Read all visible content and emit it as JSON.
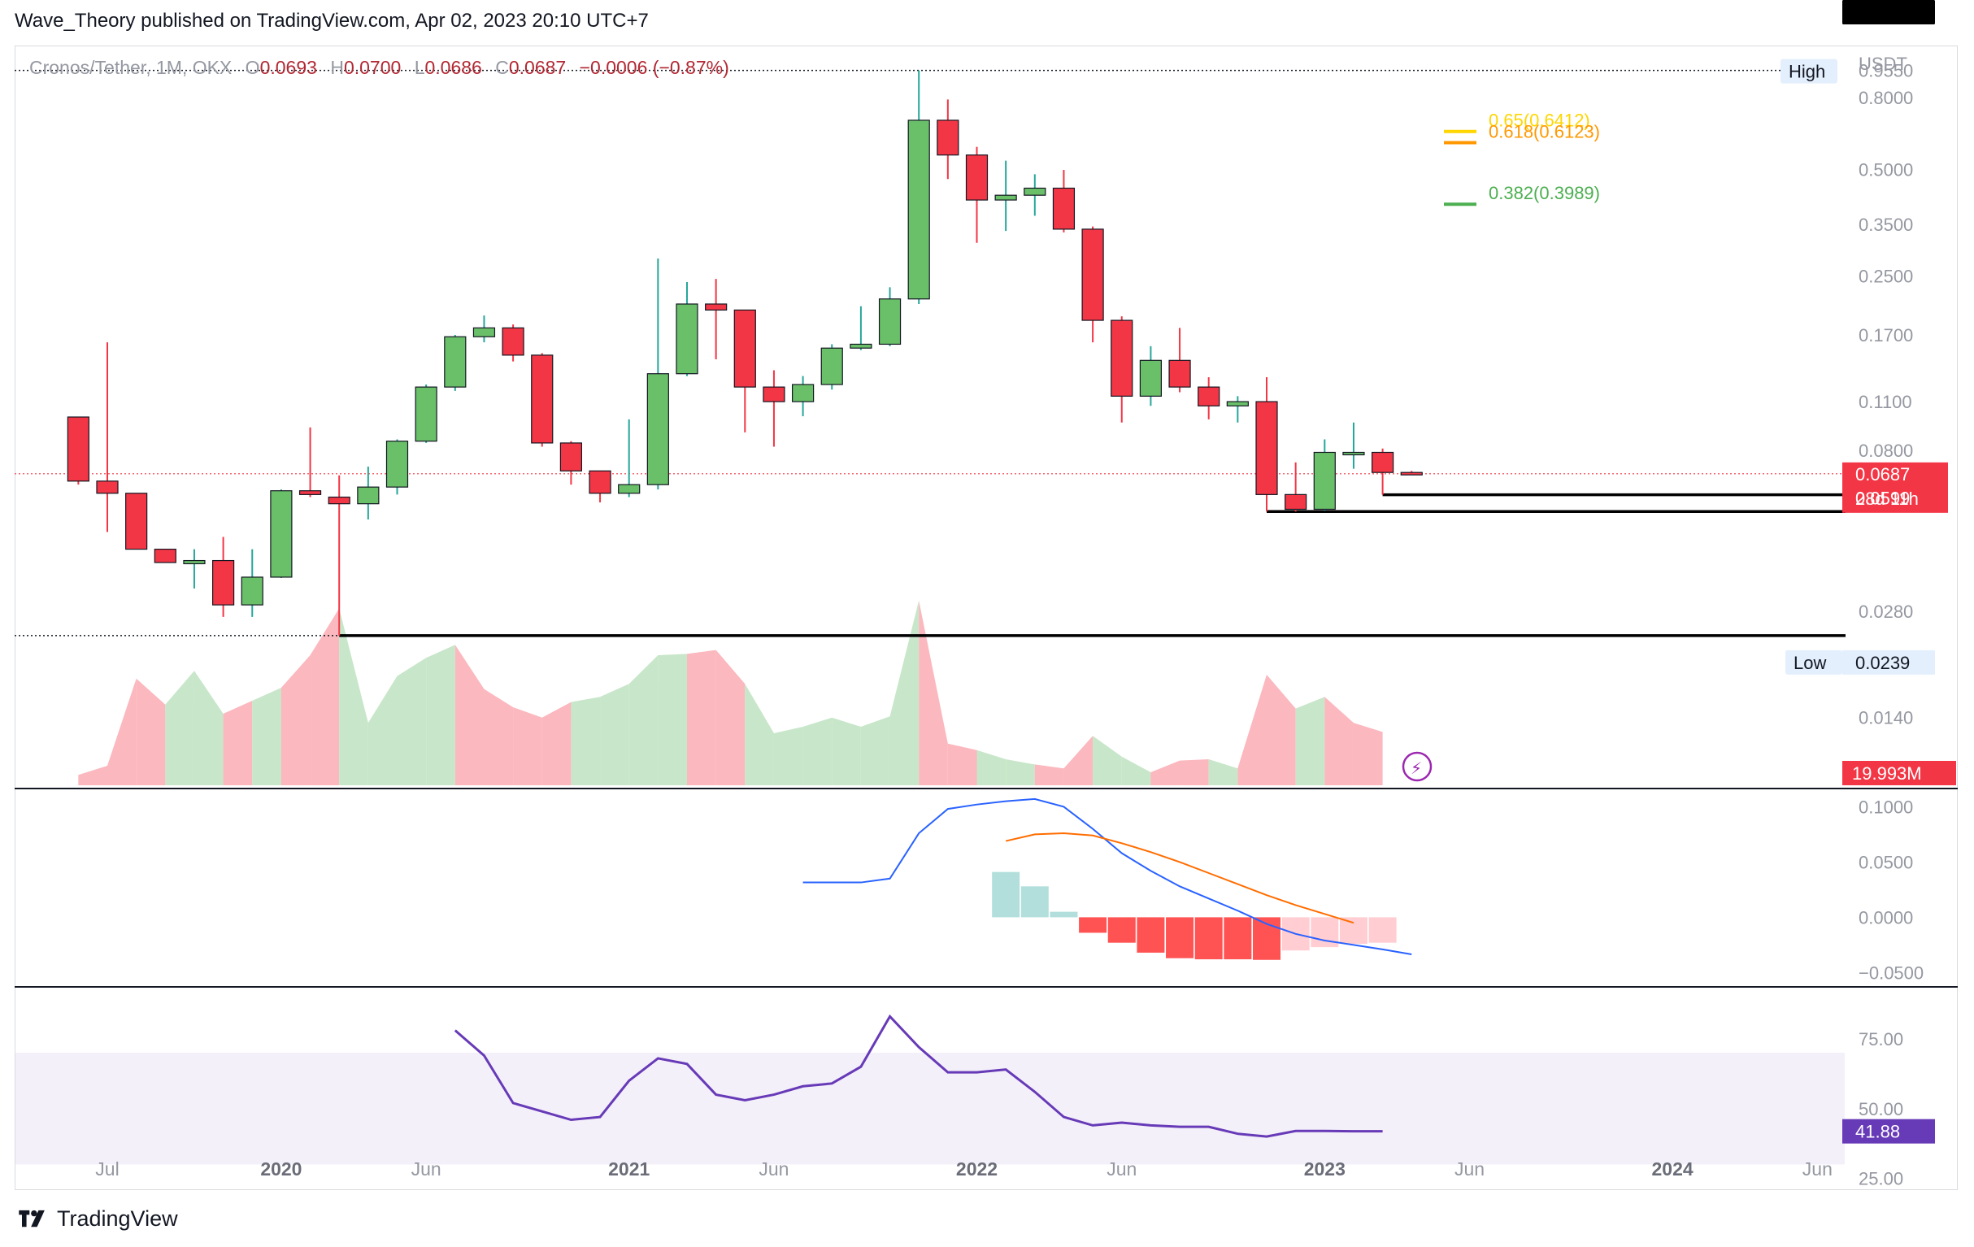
{
  "header": {
    "text": "Wave_Theory published on TradingView.com, Apr 02, 2023 20:10 UTC+7"
  },
  "legend": {
    "symbol": "Cronos/Tether, 1M, OKX",
    "o_label": "O",
    "o_value": "0.0693",
    "h_label": "H",
    "h_value": "0.0700",
    "l_label": "L",
    "l_value": "0.0686",
    "c_label": "C",
    "c_value": "0.0687",
    "change": "−0.0006 (−0.87%)"
  },
  "currency": "USDT",
  "footer": {
    "brand": "TradingView",
    "logo_icon": "tradingview-logo-icon"
  },
  "colors": {
    "up": "#4caf50",
    "up_fill": "#6abf69",
    "down": "#f23645",
    "vol_up": "#c8e6c9",
    "vol_down": "#fbb8be",
    "macd": "#2962ff",
    "signal": "#ff6d00",
    "hist_pos_strong": "#b2dfdb",
    "hist_neg_strong": "#ff5252",
    "hist_neg_weak": "#ffcdd2",
    "rsi": "#673ab7",
    "rsi_band": "#f4f0fa",
    "fib_0618": "#ff9800",
    "fib_065": "#ffd600",
    "fib_0382": "#4caf50"
  },
  "chart_data": [
    {
      "type": "candlestick",
      "panel": "price",
      "scale": "log",
      "ylim": [
        0.009,
        1.1
      ],
      "y_ticks": [
        "0.9550",
        "0.8000",
        "0.5000",
        "0.3500",
        "0.2500",
        "0.1700",
        "0.1100",
        "0.0800",
        "0.0280",
        "0.0140"
      ],
      "x_ticks": [
        "Jul",
        "2020",
        "Jun",
        "2021",
        "Jun",
        "2022",
        "Jun",
        "2023",
        "Jun",
        "2024",
        "Jun"
      ],
      "x_tick_months": [
        0,
        6,
        11,
        18,
        23,
        30,
        35,
        42,
        47,
        54,
        59
      ],
      "months_from": "2019-07",
      "candles": [
        {
          "m": "2019-06",
          "o": 0.0995,
          "h": 0.0995,
          "l": 0.064,
          "c": 0.0655
        },
        {
          "m": "2019-07",
          "o": 0.0655,
          "h": 0.162,
          "l": 0.047,
          "c": 0.0605
        },
        {
          "m": "2019-08",
          "o": 0.0605,
          "h": 0.0605,
          "l": 0.042,
          "c": 0.042
        },
        {
          "m": "2019-09",
          "o": 0.042,
          "h": 0.042,
          "l": 0.0385,
          "c": 0.0385
        },
        {
          "m": "2019-10",
          "o": 0.0382,
          "h": 0.042,
          "l": 0.0325,
          "c": 0.039
        },
        {
          "m": "2019-11",
          "o": 0.039,
          "h": 0.0455,
          "l": 0.027,
          "c": 0.0292
        },
        {
          "m": "2019-12",
          "o": 0.0292,
          "h": 0.042,
          "l": 0.027,
          "c": 0.035
        },
        {
          "m": "2020-01",
          "o": 0.035,
          "h": 0.062,
          "l": 0.0348,
          "c": 0.0615
        },
        {
          "m": "2020-02",
          "o": 0.0615,
          "h": 0.093,
          "l": 0.059,
          "c": 0.06
        },
        {
          "m": "2020-03",
          "o": 0.059,
          "h": 0.068,
          "l": 0.0239,
          "c": 0.0565
        },
        {
          "m": "2020-04",
          "o": 0.0565,
          "h": 0.072,
          "l": 0.051,
          "c": 0.063
        },
        {
          "m": "2020-05",
          "o": 0.063,
          "h": 0.086,
          "l": 0.06,
          "c": 0.085
        },
        {
          "m": "2020-06",
          "o": 0.085,
          "h": 0.123,
          "l": 0.084,
          "c": 0.121
        },
        {
          "m": "2020-07",
          "o": 0.121,
          "h": 0.17,
          "l": 0.118,
          "c": 0.168
        },
        {
          "m": "2020-08",
          "o": 0.168,
          "h": 0.193,
          "l": 0.162,
          "c": 0.178
        },
        {
          "m": "2020-09",
          "o": 0.178,
          "h": 0.182,
          "l": 0.143,
          "c": 0.149
        },
        {
          "m": "2020-10",
          "o": 0.149,
          "h": 0.151,
          "l": 0.082,
          "c": 0.084
        },
        {
          "m": "2020-11",
          "o": 0.084,
          "h": 0.085,
          "l": 0.064,
          "c": 0.07
        },
        {
          "m": "2020-12",
          "o": 0.07,
          "h": 0.07,
          "l": 0.057,
          "c": 0.0605
        },
        {
          "m": "2021-01",
          "o": 0.0605,
          "h": 0.098,
          "l": 0.059,
          "c": 0.064
        },
        {
          "m": "2021-02",
          "o": 0.064,
          "h": 0.28,
          "l": 0.062,
          "c": 0.132
        },
        {
          "m": "2021-03",
          "o": 0.132,
          "h": 0.24,
          "l": 0.13,
          "c": 0.208
        },
        {
          "m": "2021-04",
          "o": 0.208,
          "h": 0.245,
          "l": 0.145,
          "c": 0.2
        },
        {
          "m": "2021-05",
          "o": 0.2,
          "h": 0.2,
          "l": 0.09,
          "c": 0.121
        },
        {
          "m": "2021-06",
          "o": 0.121,
          "h": 0.135,
          "l": 0.082,
          "c": 0.11
        },
        {
          "m": "2021-07",
          "o": 0.11,
          "h": 0.13,
          "l": 0.1,
          "c": 0.123
        },
        {
          "m": "2021-08",
          "o": 0.123,
          "h": 0.16,
          "l": 0.119,
          "c": 0.156
        },
        {
          "m": "2021-09",
          "o": 0.156,
          "h": 0.205,
          "l": 0.154,
          "c": 0.16
        },
        {
          "m": "2021-10",
          "o": 0.16,
          "h": 0.232,
          "l": 0.158,
          "c": 0.215
        },
        {
          "m": "2021-11",
          "o": 0.215,
          "h": 0.955,
          "l": 0.208,
          "c": 0.69
        },
        {
          "m": "2021-12",
          "o": 0.69,
          "h": 0.79,
          "l": 0.47,
          "c": 0.55
        },
        {
          "m": "2022-01",
          "o": 0.55,
          "h": 0.58,
          "l": 0.31,
          "c": 0.41
        },
        {
          "m": "2022-02",
          "o": 0.41,
          "h": 0.53,
          "l": 0.335,
          "c": 0.423
        },
        {
          "m": "2022-03",
          "o": 0.423,
          "h": 0.485,
          "l": 0.37,
          "c": 0.443
        },
        {
          "m": "2022-04",
          "o": 0.443,
          "h": 0.499,
          "l": 0.332,
          "c": 0.339
        },
        {
          "m": "2022-05",
          "o": 0.339,
          "h": 0.345,
          "l": 0.162,
          "c": 0.187
        },
        {
          "m": "2022-06",
          "o": 0.187,
          "h": 0.192,
          "l": 0.096,
          "c": 0.114
        },
        {
          "m": "2022-07",
          "o": 0.114,
          "h": 0.158,
          "l": 0.107,
          "c": 0.144
        },
        {
          "m": "2022-08",
          "o": 0.144,
          "h": 0.178,
          "l": 0.117,
          "c": 0.121
        },
        {
          "m": "2022-09",
          "o": 0.121,
          "h": 0.129,
          "l": 0.098,
          "c": 0.107
        },
        {
          "m": "2022-10",
          "o": 0.107,
          "h": 0.114,
          "l": 0.096,
          "c": 0.11
        },
        {
          "m": "2022-11",
          "o": 0.11,
          "h": 0.129,
          "l": 0.0537,
          "c": 0.06
        },
        {
          "m": "2022-12",
          "o": 0.06,
          "h": 0.074,
          "l": 0.0537,
          "c": 0.0545
        },
        {
          "m": "2023-01",
          "o": 0.0545,
          "h": 0.086,
          "l": 0.054,
          "c": 0.079
        },
        {
          "m": "2023-02",
          "o": 0.079,
          "h": 0.096,
          "l": 0.071,
          "c": 0.079
        },
        {
          "m": "2023-03",
          "o": 0.079,
          "h": 0.081,
          "l": 0.0599,
          "c": 0.0693
        },
        {
          "m": "2023-04",
          "o": 0.0693,
          "h": 0.07,
          "l": 0.0686,
          "c": 0.0687
        }
      ],
      "horizontal_lines": [
        {
          "value": 0.0599,
          "from_month": "2023-03"
        },
        {
          "value": 0.0537,
          "from_month": "2022-11"
        },
        {
          "value": 0.0239,
          "from_month": "2020-03"
        }
      ],
      "high_low": {
        "high_label": "High",
        "high_value": 0.955,
        "low_label": "Low",
        "low_value": "0.0239"
      },
      "fib_levels": [
        {
          "label": "0.65(0.6412)",
          "value": 0.6412
        },
        {
          "label": "0.618(0.6123)",
          "value": 0.6123
        },
        {
          "label": "0.382(0.3989)",
          "value": 0.3989
        }
      ],
      "price_labels": [
        {
          "text": "0.0687",
          "countdown": "28d 11h"
        },
        {
          "text": "0.0599"
        },
        {
          "text": "0.0537"
        },
        {
          "text": "0.0239"
        }
      ]
    },
    {
      "type": "area",
      "panel": "volume",
      "label": "19.993M",
      "values": [
        0.08,
        0.15,
        0.82,
        0.62,
        0.88,
        0.55,
        0.65,
        0.75,
        1.0,
        1.36,
        0.48,
        0.84,
        0.98,
        1.08,
        0.74,
        0.6,
        0.52,
        0.64,
        0.68,
        0.78,
        1.0,
        1.01,
        1.04,
        0.78,
        0.4,
        0.45,
        0.52,
        0.45,
        0.53,
        1.42,
        0.32,
        0.27,
        0.2,
        0.16,
        0.13,
        0.38,
        0.22,
        0.1,
        0.19,
        0.2,
        0.13,
        0.85,
        0.59,
        0.68,
        0.48,
        0.41
      ],
      "directions": [
        "down",
        "down",
        "down",
        "down",
        "up",
        "up",
        "down",
        "up",
        "down",
        "down",
        "up",
        "up",
        "up",
        "up",
        "down",
        "down",
        "down",
        "down",
        "up",
        "up",
        "up",
        "up",
        "down",
        "down",
        "up",
        "up",
        "up",
        "up",
        "up",
        "up",
        "down",
        "down",
        "up",
        "up",
        "down",
        "down",
        "up",
        "up",
        "down",
        "down",
        "up",
        "down",
        "down",
        "up",
        "down",
        "down"
      ]
    },
    {
      "type": "line",
      "panel": "macd",
      "y_ticks": [
        "0.1000",
        "0.0500",
        "0.0000",
        "−0.0500"
      ],
      "ylim": [
        -0.06,
        0.115
      ],
      "series": [
        {
          "values": [
            0.0315,
            0.0315,
            0.0315,
            0.035,
            0.076,
            0.098,
            0.102,
            0.105,
            0.107,
            0.1,
            0.08,
            0.058,
            0.042,
            0.028,
            0.017,
            0.006,
            -0.006,
            -0.015,
            -0.021,
            -0.025,
            -0.029,
            -0.0335
          ],
          "start_month": "2021-07"
        },
        {
          "values": [
            0.069,
            0.075,
            0.076,
            0.074,
            0.067,
            0.059,
            0.05,
            0.04,
            0.03,
            0.02,
            0.011,
            0.003,
            -0.005
          ],
          "start_month": "2022-02"
        }
      ],
      "histogram": [
        0.041,
        0.028,
        0.005,
        -0.014,
        -0.023,
        -0.032,
        -0.037,
        -0.038,
        -0.038,
        -0.0385,
        -0.03,
        -0.027,
        -0.024,
        -0.023
      ],
      "histogram_start_month": "2022-02"
    },
    {
      "type": "line",
      "panel": "rsi",
      "label": "41.88",
      "y_ticks": [
        "75.00",
        "50.00",
        "25.00"
      ],
      "ylim": [
        22,
        93
      ],
      "band": [
        30,
        70
      ],
      "values": [
        78,
        69,
        52,
        49,
        46,
        47,
        60,
        68,
        66,
        55,
        53,
        55,
        58,
        59,
        65,
        83,
        72,
        63,
        63,
        64,
        56,
        47,
        44,
        45,
        44,
        43.5,
        43.5,
        41,
        40,
        42,
        42,
        41.88,
        41.88
      ],
      "start_month": "2020-07"
    }
  ]
}
